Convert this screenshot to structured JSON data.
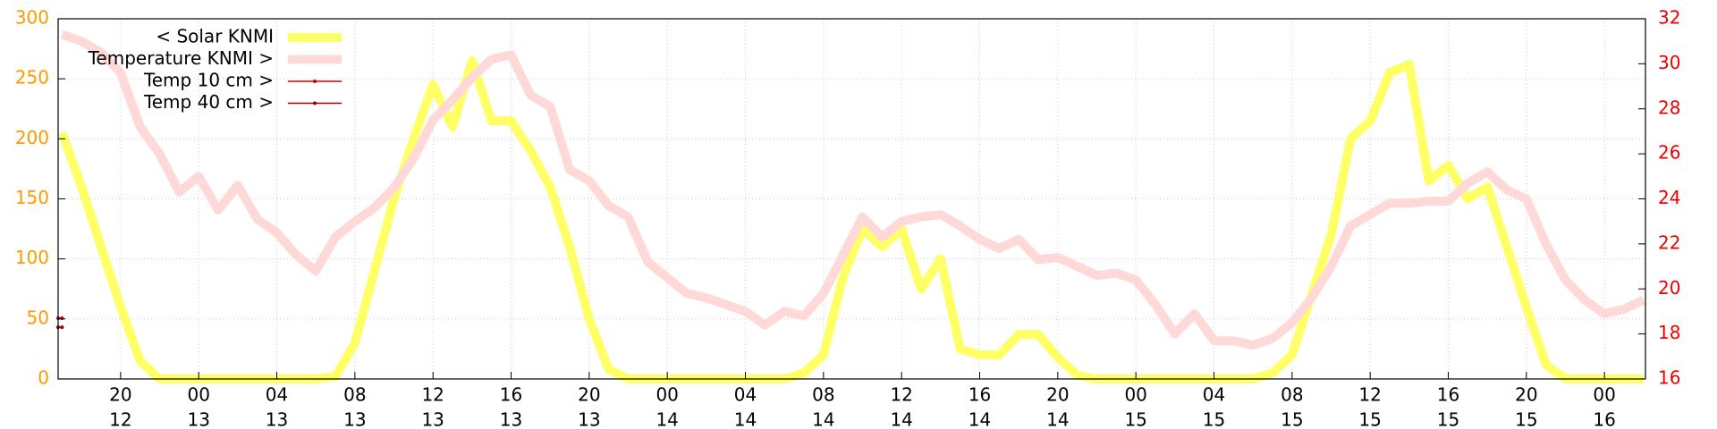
{
  "chart_data": {
    "type": "line",
    "x": [
      17,
      18,
      19,
      20,
      21,
      22,
      23,
      24,
      25,
      26,
      27,
      28,
      29,
      30,
      31,
      32,
      33,
      34,
      35,
      36,
      37,
      38,
      39,
      40,
      41,
      42,
      43,
      44,
      45,
      46,
      47,
      48,
      49,
      50,
      51,
      52,
      53,
      54,
      55,
      56,
      57,
      58,
      59,
      60,
      61,
      62,
      63,
      64,
      65,
      66,
      67,
      68,
      69,
      70,
      71,
      72,
      73,
      74,
      75,
      76,
      77,
      78,
      79,
      80,
      81,
      82,
      83,
      84,
      85,
      86,
      87,
      88,
      89,
      90,
      91,
      92,
      93,
      94,
      95,
      96,
      97,
      98
    ],
    "series": [
      {
        "name": "< Solar KNMI",
        "color": "#ffff66",
        "axis": "y",
        "values": [
          205,
          160,
          110,
          60,
          15,
          0,
          0,
          0,
          0,
          0,
          0,
          0,
          0,
          0,
          2,
          30,
          90,
          150,
          200,
          245,
          210,
          265,
          215,
          215,
          190,
          160,
          110,
          50,
          8,
          0,
          0,
          0,
          0,
          0,
          0,
          0,
          0,
          0,
          5,
          20,
          85,
          125,
          110,
          125,
          75,
          100,
          25,
          20,
          20,
          37,
          37,
          18,
          3,
          0,
          0,
          0,
          0,
          0,
          0,
          0,
          0,
          0,
          5,
          20,
          70,
          120,
          200,
          215,
          255,
          262,
          165,
          178,
          150,
          160,
          110,
          60,
          12,
          0,
          0,
          0,
          0,
          0
        ]
      },
      {
        "name": "Temperature KNMI >",
        "color": "#ffd8d8",
        "axis": "y2",
        "values": [
          31.3,
          31,
          30.5,
          29.6,
          27.2,
          26,
          24.3,
          25,
          23.5,
          24.6,
          23.1,
          22.5,
          21.5,
          20.8,
          22.3,
          23,
          23.6,
          24.5,
          25.8,
          27.5,
          28.4,
          29.4,
          30.2,
          30.4,
          28.6,
          28.1,
          25.3,
          24.8,
          23.7,
          23.2,
          21.2,
          20.5,
          19.8,
          19.6,
          19.3,
          19,
          18.4,
          19,
          18.8,
          19.8,
          21.5,
          23.2,
          22.3,
          23,
          23.2,
          23.3,
          22.8,
          22.2,
          21.8,
          22.2,
          21.3,
          21.4,
          21,
          20.6,
          20.7,
          20.4,
          19.3,
          18,
          18.9,
          17.7,
          17.7,
          17.5,
          17.8,
          18.5,
          19.6,
          21,
          22.8,
          23.3,
          23.8,
          23.8,
          23.9,
          23.9,
          24.7,
          25.2,
          24.4,
          24,
          22,
          20.4,
          19.5,
          18.9,
          19.1,
          19.5
        ]
      },
      {
        "name": "Temp 10 cm >",
        "color": "#cc0000",
        "axis": "y2",
        "x": [
          16.8,
          17
        ],
        "values": [
          18.7,
          18.7
        ]
      },
      {
        "name": "Temp 40 cm >",
        "color": "#990000",
        "axis": "y2",
        "x": [
          16.8,
          17
        ],
        "values": [
          18.3,
          18.3
        ]
      }
    ],
    "xlim": [
      16.8,
      98.1
    ],
    "xticks": [
      {
        "value": 20,
        "label": "20",
        "day": "12"
      },
      {
        "value": 24,
        "label": "00",
        "day": "13"
      },
      {
        "value": 28,
        "label": "04",
        "day": "13"
      },
      {
        "value": 32,
        "label": "08",
        "day": "13"
      },
      {
        "value": 36,
        "label": "12",
        "day": "13"
      },
      {
        "value": 40,
        "label": "16",
        "day": "13"
      },
      {
        "value": 44,
        "label": "20",
        "day": "13"
      },
      {
        "value": 48,
        "label": "00",
        "day": "14"
      },
      {
        "value": 52,
        "label": "04",
        "day": "14"
      },
      {
        "value": 56,
        "label": "08",
        "day": "14"
      },
      {
        "value": 60,
        "label": "12",
        "day": "14"
      },
      {
        "value": 64,
        "label": "16",
        "day": "14"
      },
      {
        "value": 68,
        "label": "20",
        "day": "14"
      },
      {
        "value": 72,
        "label": "00",
        "day": "15"
      },
      {
        "value": 76,
        "label": "04",
        "day": "15"
      },
      {
        "value": 80,
        "label": "08",
        "day": "15"
      },
      {
        "value": 84,
        "label": "12",
        "day": "15"
      },
      {
        "value": 88,
        "label": "16",
        "day": "15"
      },
      {
        "value": 92,
        "label": "20",
        "day": "15"
      },
      {
        "value": 96,
        "label": "00",
        "day": "16"
      }
    ],
    "ylim": [
      0,
      300
    ],
    "yticks": [
      0,
      50,
      100,
      150,
      200,
      250,
      300
    ],
    "ytick_color": "#ff9900",
    "y2lim": [
      16,
      32
    ],
    "y2ticks": [
      16,
      18,
      20,
      22,
      24,
      26,
      28,
      30,
      32
    ],
    "y2tick_color": "#ee0000",
    "grid": true,
    "legend": "upper left"
  }
}
